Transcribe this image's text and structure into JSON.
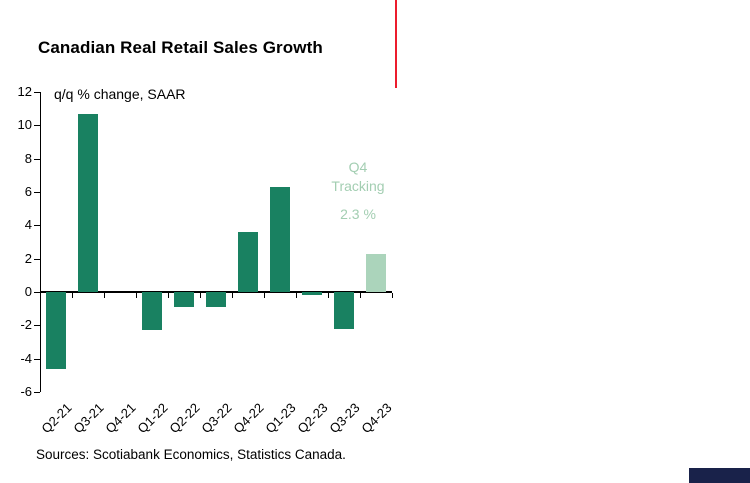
{
  "title": "Canadian Real Retail Sales Growth",
  "subtitle": "q/q % change, SAAR",
  "annotation": {
    "line1": "Q4",
    "line2": "Tracking",
    "value": "2.3 %"
  },
  "sources": "Sources: Scotiabank Economics, Statistics Canada.",
  "colors": {
    "bar": "#198161",
    "tracking_bar": "#abd4bb",
    "annotation_text": "#a3ceb2",
    "red_rule": "#ec1c2d",
    "navy_block": "#19224a",
    "axis": "#000000"
  },
  "chart_data": {
    "type": "bar",
    "categories": [
      "Q2-21",
      "Q3-21",
      "Q4-21",
      "Q1-22",
      "Q2-22",
      "Q3-22",
      "Q4-22",
      "Q1-23",
      "Q2-23",
      "Q3-23",
      "Q4-23"
    ],
    "values": [
      -4.6,
      10.7,
      0,
      -2.3,
      -0.9,
      -0.9,
      3.6,
      6.3,
      -0.2,
      -2.2,
      2.3
    ],
    "highlight_index": 10,
    "highlight_label": "Q4 Tracking 2.3 %",
    "title": "Canadian Real Retail Sales Growth",
    "ylabel": "q/q % change, SAAR",
    "ylim": [
      -6,
      12
    ],
    "ytick_step": 2,
    "grid": false,
    "legend": "none"
  }
}
